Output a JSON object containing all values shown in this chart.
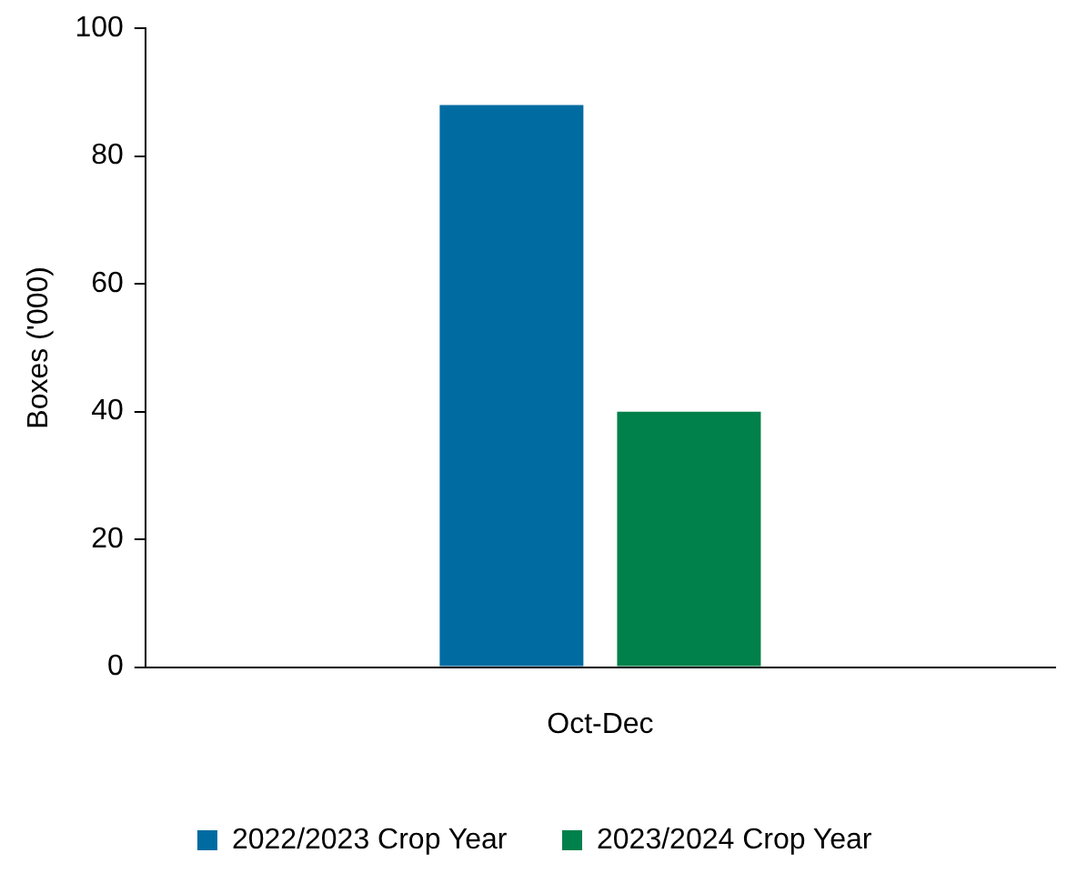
{
  "chart_data": {
    "type": "bar",
    "ylabel": "Boxes ('000)",
    "categories": [
      "Oct-Dec"
    ],
    "series": [
      {
        "name": "2022/2023 Crop Year",
        "color": "#006ba1",
        "values": [
          88
        ]
      },
      {
        "name": "2023/2024 Crop Year",
        "color": "#00804a",
        "values": [
          40
        ]
      }
    ],
    "ylim": [
      0,
      100
    ],
    "yticks": [
      0,
      20,
      40,
      60,
      80,
      100
    ],
    "grid": false,
    "legend": "bottom"
  }
}
